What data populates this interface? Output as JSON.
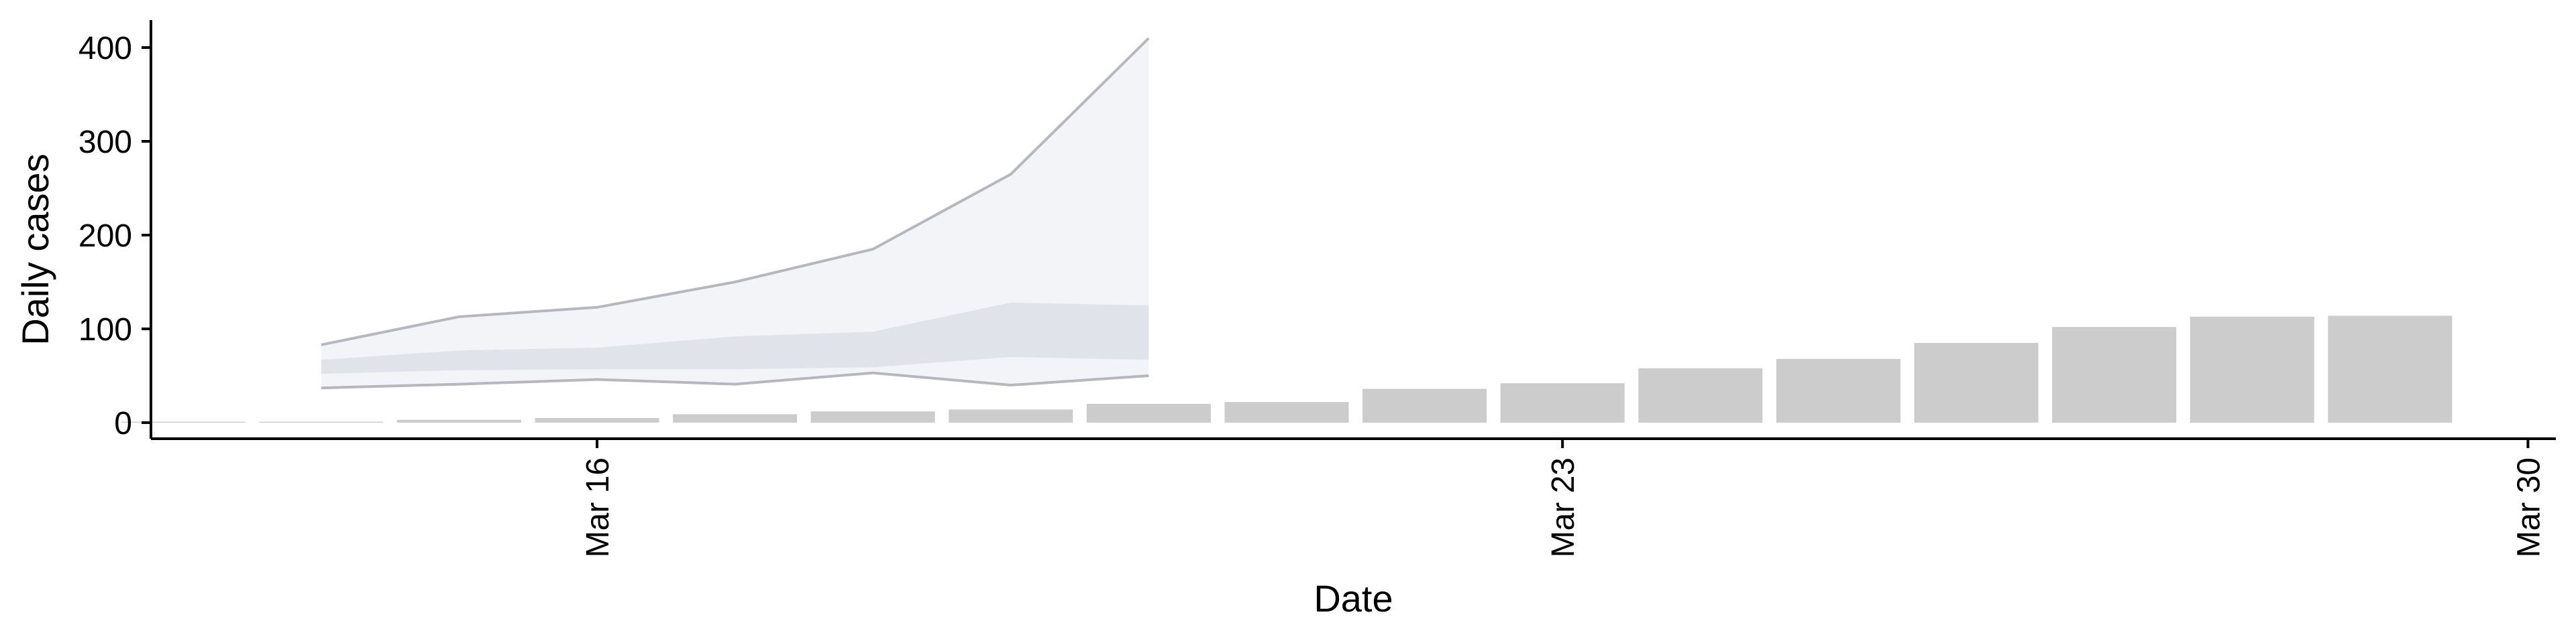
{
  "chart_data": {
    "type": "bar",
    "xlabel": "Date",
    "ylabel": "Daily cases",
    "ylim": [
      -20,
      430
    ],
    "yticks": [
      0,
      100,
      200,
      300,
      400
    ],
    "xlim": [
      "2020-03-12",
      "2020-03-30"
    ],
    "xticks": [
      {
        "date": "2020-03-16",
        "label": "Mar 16"
      },
      {
        "date": "2020-03-23",
        "label": "Mar 23"
      },
      {
        "date": "2020-03-30",
        "label": "Mar 30"
      }
    ],
    "grid": false,
    "legend": "none",
    "colors": {
      "bars": "#cccccc",
      "band_outer": "#eff0f6",
      "band_inner": "#d9dbe6",
      "band_line": "#a0a0a8"
    },
    "bars": {
      "dates": [
        "2020-03-13",
        "2020-03-14",
        "2020-03-15",
        "2020-03-16",
        "2020-03-17",
        "2020-03-18",
        "2020-03-19",
        "2020-03-20",
        "2020-03-21",
        "2020-03-22",
        "2020-03-23",
        "2020-03-24",
        "2020-03-25",
        "2020-03-26",
        "2020-03-27",
        "2020-03-28",
        "2020-03-29"
      ],
      "values": [
        1,
        1,
        3,
        5,
        9,
        12,
        14,
        20,
        22,
        36,
        42,
        58,
        68,
        85,
        102,
        113,
        114
      ]
    },
    "projection": {
      "dates": [
        "2020-03-14",
        "2020-03-15",
        "2020-03-16",
        "2020-03-17",
        "2020-03-18",
        "2020-03-19",
        "2020-03-20"
      ],
      "outer_upper": [
        83,
        113,
        123,
        150,
        185,
        265,
        410
      ],
      "outer_lower": [
        37,
        41,
        46,
        41,
        53,
        40,
        50
      ],
      "inner_upper": [
        67,
        77,
        80,
        92,
        97,
        128,
        125
      ],
      "inner_lower": [
        52,
        56,
        57,
        57,
        59,
        70,
        67
      ]
    }
  }
}
